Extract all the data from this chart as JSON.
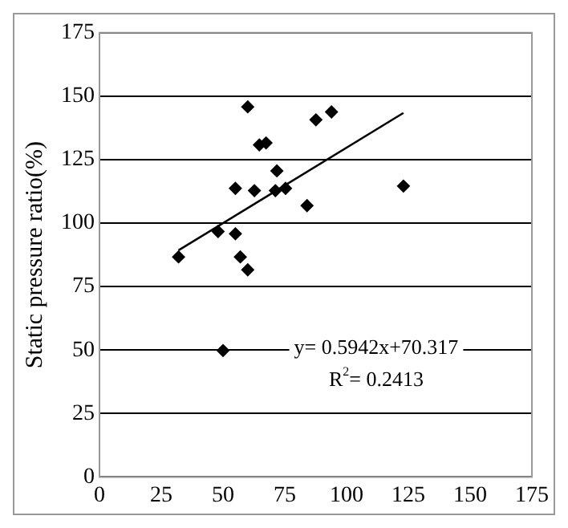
{
  "chart_data": {
    "type": "scatter",
    "ylabel": "Static pressure ratio(%)",
    "xlim": [
      0,
      175
    ],
    "ylim": [
      0,
      175
    ],
    "xticks": [
      0,
      25,
      50,
      75,
      100,
      125,
      150,
      175
    ],
    "yticks": [
      0,
      25,
      50,
      75,
      100,
      125,
      150,
      175
    ],
    "grid": "y",
    "marker": "diamond",
    "series": [
      {
        "color": "#000000",
        "x": [
          32,
          48,
          55,
          57,
          60,
          50,
          55,
          60,
          62.7,
          64.7,
          67.4,
          71.8,
          71.2,
          75.3,
          84,
          87.6,
          93.9,
          123
        ],
        "values": [
          86.7,
          96.7,
          95.8,
          86.7,
          81.6,
          49.8,
          113.7,
          145.8,
          112.8,
          130.8,
          131.6,
          120.6,
          112.8,
          113.7,
          106.9,
          140.7,
          143.8,
          114.6
        ]
      },
      {
        "type": "line",
        "color": "#000000",
        "x": [
          32,
          123
        ],
        "values": [
          89.3,
          143.4
        ],
        "marker": "none"
      }
    ],
    "annotations": [
      "y= 0.5942x+70.317",
      "R$^{2}$= 0.2413"
    ]
  }
}
